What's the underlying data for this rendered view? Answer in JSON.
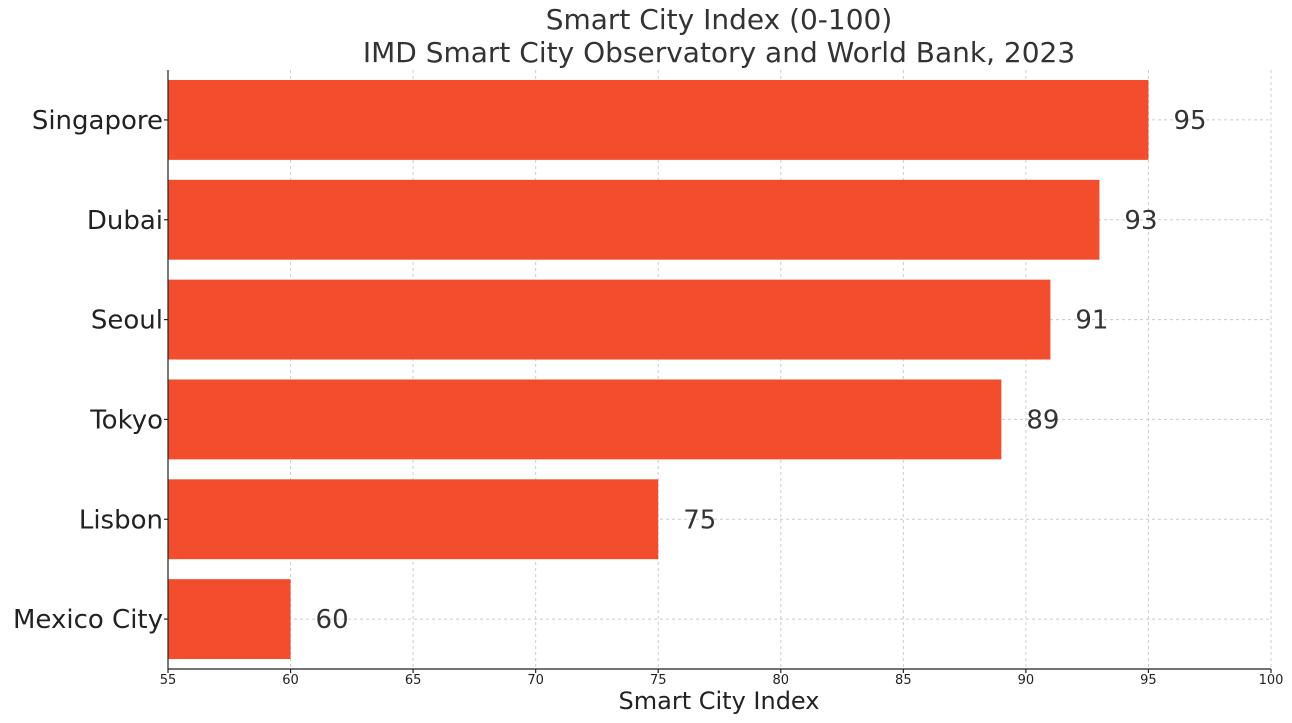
{
  "chart_data": {
    "type": "bar",
    "orientation": "horizontal",
    "title": "Smart City Index (0-100)",
    "subtitle": "IMD Smart City Observatory and World Bank, 2023",
    "xlabel": "Smart City Index",
    "ylabel": "",
    "xlim": [
      55,
      100
    ],
    "xticks": [
      55,
      60,
      65,
      70,
      75,
      80,
      85,
      90,
      95,
      100
    ],
    "grid": true,
    "bar_color": "#f24e2e",
    "categories": [
      "Singapore",
      "Dubai",
      "Seoul",
      "Tokyo",
      "Lisbon",
      "Mexico City"
    ],
    "values": [
      95,
      93,
      91,
      89,
      75,
      60
    ]
  }
}
